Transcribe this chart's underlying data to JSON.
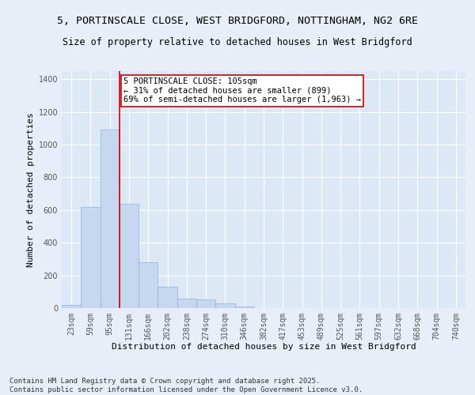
{
  "title_line1": "5, PORTINSCALE CLOSE, WEST BRIDGFORD, NOTTINGHAM, NG2 6RE",
  "title_line2": "Size of property relative to detached houses in West Bridgford",
  "xlabel": "Distribution of detached houses by size in West Bridgford",
  "ylabel": "Number of detached properties",
  "categories": [
    "23sqm",
    "59sqm",
    "95sqm",
    "131sqm",
    "166sqm",
    "202sqm",
    "238sqm",
    "274sqm",
    "310sqm",
    "346sqm",
    "382sqm",
    "417sqm",
    "453sqm",
    "489sqm",
    "525sqm",
    "561sqm",
    "597sqm",
    "632sqm",
    "668sqm",
    "704sqm",
    "740sqm"
  ],
  "values": [
    20,
    620,
    1090,
    640,
    280,
    130,
    60,
    55,
    30,
    8,
    2,
    0,
    0,
    0,
    0,
    0,
    0,
    0,
    0,
    0,
    0
  ],
  "bar_color": "#c5d8f0",
  "bar_edge_color": "#8ab4d8",
  "vline_x_index": 2,
  "vline_color": "#cc0000",
  "annotation_text": "5 PORTINSCALE CLOSE: 105sqm\n← 31% of detached houses are smaller (899)\n69% of semi-detached houses are larger (1,963) →",
  "annotation_box_color": "#ffffff",
  "annotation_box_edge": "#cc0000",
  "ylim": [
    0,
    1450
  ],
  "yticks": [
    0,
    200,
    400,
    600,
    800,
    1000,
    1200,
    1400
  ],
  "bg_color": "#e8eef7",
  "plot_bg_color": "#dce8f5",
  "footer_line1": "Contains HM Land Registry data © Crown copyright and database right 2025.",
  "footer_line2": "Contains public sector information licensed under the Open Government Licence v3.0.",
  "title_fontsize": 9.5,
  "subtitle_fontsize": 8.5,
  "axis_label_fontsize": 8,
  "tick_fontsize": 7,
  "annotation_fontsize": 7.5,
  "footer_fontsize": 6.5,
  "grid_color": "#ffffff",
  "tick_color": "#555555"
}
